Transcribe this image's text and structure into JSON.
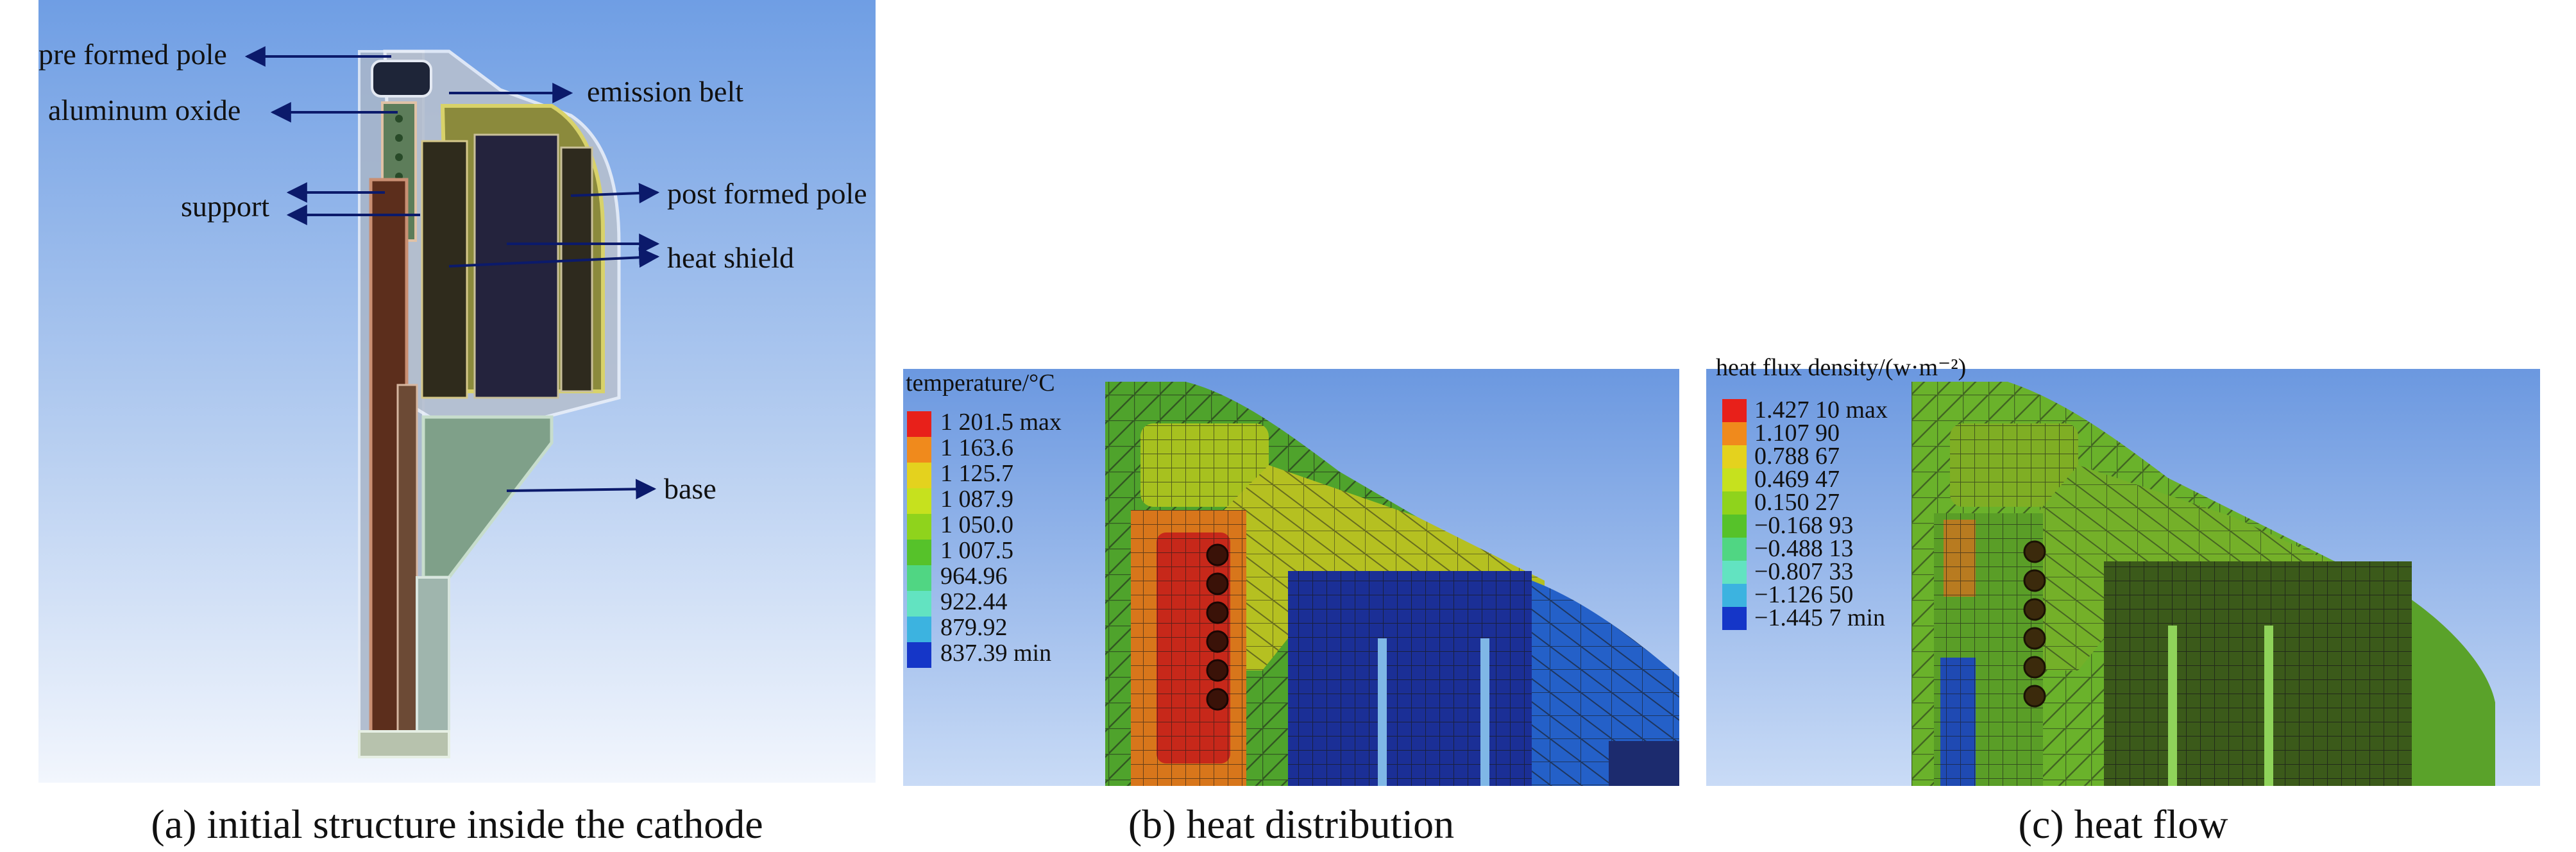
{
  "panels": {
    "a": {
      "caption": "(a) initial structure inside the cathode",
      "labels": {
        "pre_formed_pole": "pre formed pole",
        "aluminum_oxide": "aluminum oxide",
        "support": "support",
        "emission_belt": "emission belt",
        "post_formed_pole": "post formed pole",
        "heat_shield": "heat shield",
        "base": "base"
      }
    },
    "b": {
      "caption": "(b) heat distribution",
      "legend_title": "temperature/°C",
      "legend": [
        {
          "label": "1 201.5 max",
          "color": "#e8201a"
        },
        {
          "label": "1 163.6",
          "color": "#f08a1c"
        },
        {
          "label": "1 125.7",
          "color": "#e4d21e"
        },
        {
          "label": "1 087.9",
          "color": "#c6e11e"
        },
        {
          "label": "1 050.0",
          "color": "#8fd31c"
        },
        {
          "label": "1 007.5",
          "color": "#56c22a"
        },
        {
          "label": "964.96",
          "color": "#50d683"
        },
        {
          "label": "922.44",
          "color": "#62e3c1"
        },
        {
          "label": "879.92",
          "color": "#3cb3e0"
        },
        {
          "label": "837.39 min",
          "color": "#1536c8"
        }
      ]
    },
    "c": {
      "caption": "(c) heat flow",
      "legend_title": "heat flux density/(w·m⁻²)",
      "legend": [
        {
          "label": "1.427 10 max",
          "color": "#e8201a"
        },
        {
          "label": "1.107 90",
          "color": "#f08a1c"
        },
        {
          "label": "0.788 67",
          "color": "#e4d21e"
        },
        {
          "label": "0.469 47",
          "color": "#c6e11e"
        },
        {
          "label": "0.150 27",
          "color": "#8fd31c"
        },
        {
          "label": "−0.168 93",
          "color": "#56c22a"
        },
        {
          "label": "−0.488 13",
          "color": "#50d683"
        },
        {
          "label": "−0.807 33",
          "color": "#62e3c1"
        },
        {
          "label": "−1.126 50",
          "color": "#3cb3e0"
        },
        {
          "label": "−1.445 7 min",
          "color": "#1536c8"
        }
      ]
    }
  }
}
